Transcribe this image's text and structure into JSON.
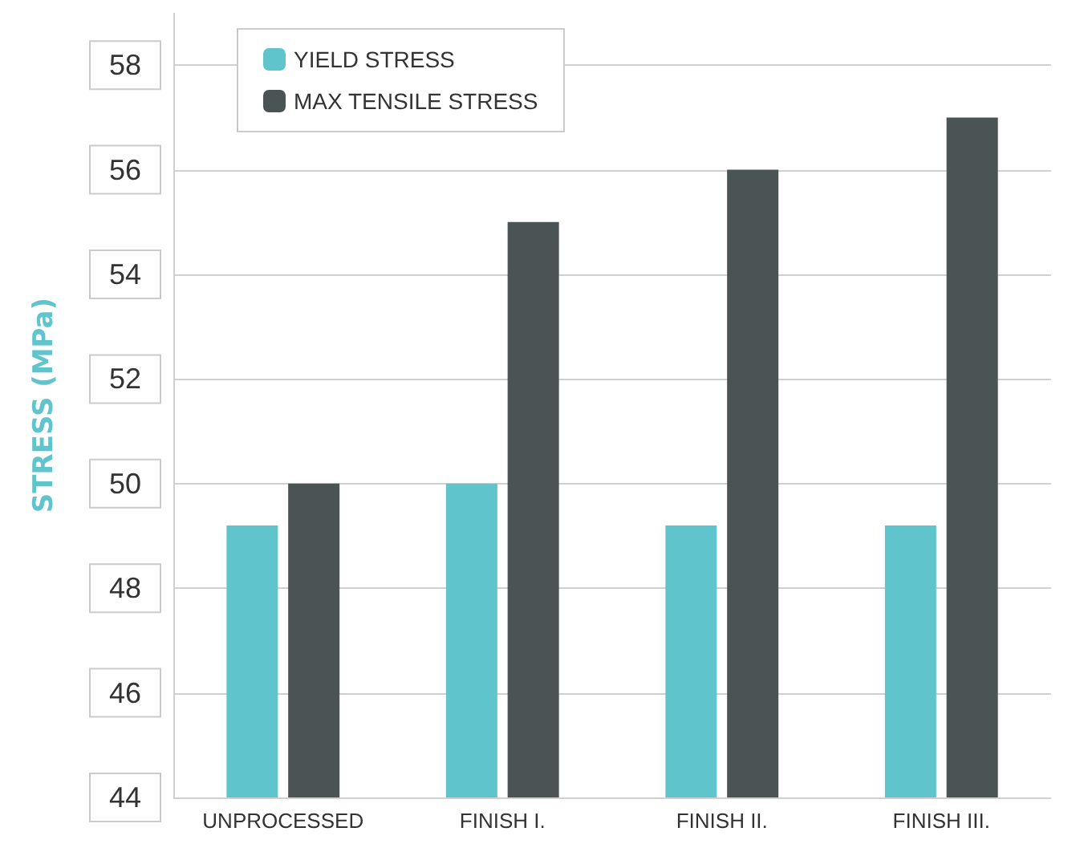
{
  "chart_data": {
    "type": "bar",
    "ylabel": "STRESS (MPa)",
    "categories": [
      "UNPROCESSED",
      "FINISH I.",
      "FINISH II.",
      "FINISH III."
    ],
    "series": [
      {
        "name": "YIELD STRESS",
        "color": "#5fc4cb",
        "values": [
          49.2,
          50,
          49.2,
          49.2
        ]
      },
      {
        "name": "MAX TENSILE STRESS",
        "color": "#4b5455",
        "values": [
          50,
          55,
          56,
          57
        ]
      }
    ],
    "ylim": [
      44,
      59
    ],
    "yticks": [
      44,
      46,
      48,
      50,
      52,
      54,
      56,
      58
    ],
    "grid": "y",
    "legend": "top left"
  }
}
